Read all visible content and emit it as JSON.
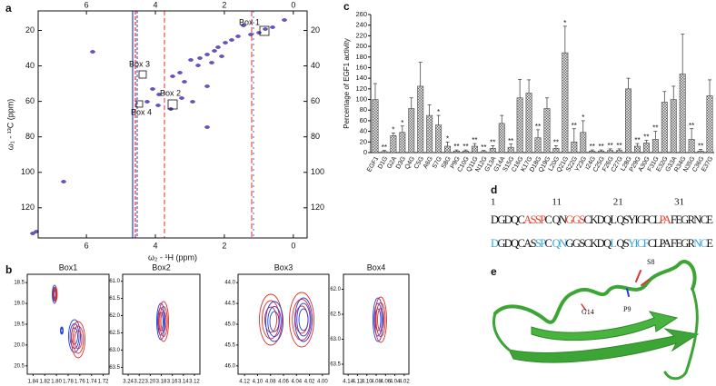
{
  "panel_labels": [
    "a",
    "b",
    "c",
    "d",
    "e"
  ],
  "chart_data": [
    {
      "type": "spectrum",
      "xlabel": "ω₂ - ¹H (ppm)",
      "ylabel": "ω₁ - ¹³C (ppm)",
      "xlim": [
        7.4,
        -0.4
      ],
      "xticks": [
        6,
        4,
        2,
        0
      ],
      "ylim": [
        9,
        137
      ],
      "yticks": [
        20,
        40,
        60,
        80,
        100,
        120
      ],
      "boxes": [
        "Box 1",
        "Box 2",
        "Box 3",
        "Box 4"
      ]
    },
    {
      "type": "contour",
      "title": "Box1",
      "xlim": [
        1.85,
        1.71
      ],
      "xticks": [
        1.84,
        1.82,
        {
          "value": 1.8,
          "label": "1.80"
        },
        1.78,
        1.76,
        1.74,
        1.72
      ],
      "ylim": [
        18.3,
        20.7
      ],
      "yticks": [
        18.5,
        {
          "value": 19,
          "label": "19.0"
        },
        19.5,
        {
          "value": 20,
          "label": "20.0"
        },
        20.5
      ]
    },
    {
      "type": "contour",
      "title": "Box2",
      "xlim": [
        3.25,
        3.11
      ],
      "xticks": [
        3.24,
        3.22,
        {
          "value": 3.2,
          "label": "3.20"
        },
        3.18,
        3.16,
        3.14,
        3.12
      ],
      "ylim": [
        60.8,
        63.7
      ],
      "yticks": [
        {
          "value": 61,
          "label": "61.0"
        },
        61.5,
        {
          "value": 62,
          "label": "62.0"
        },
        62.5,
        {
          "value": 63,
          "label": "63.0"
        },
        63.5
      ]
    },
    {
      "type": "contour",
      "title": "Box3",
      "xlim": [
        4.13,
        3.99
      ],
      "xticks": [
        4.12,
        {
          "value": 4.1,
          "label": "4.10"
        },
        4.08,
        4.06,
        4.04,
        4.02,
        {
          "value": 4,
          "label": "4.00"
        }
      ],
      "ylim": [
        43.8,
        46.2
      ],
      "yticks": [
        {
          "value": 44,
          "label": "44.0"
        },
        44.5,
        {
          "value": 45,
          "label": "45.0"
        },
        45.5,
        {
          "value": 46,
          "label": "46.0"
        }
      ]
    },
    {
      "type": "contour",
      "title": "Box4",
      "xlim": [
        4.15,
        4.01
      ],
      "xticks": [
        4.14,
        4.12,
        {
          "value": 4.1,
          "label": "4.10"
        },
        4.08,
        4.06,
        4.04,
        4.02
      ],
      "ylim": [
        61.7,
        63.7
      ],
      "yticks": [
        {
          "value": 62,
          "label": "62.0"
        },
        62.5,
        {
          "value": 63,
          "label": "63.0"
        },
        63.5
      ]
    },
    {
      "type": "bar",
      "ylabel": "Percentage of EGF1 activity",
      "color": "#c4c4c4",
      "categories": [
        "EGF1",
        "D1G",
        "G2A",
        "D3G",
        "Q4G",
        "C5G",
        "A6G",
        "S7G",
        "S8G",
        "P9G",
        "C10G",
        "Q11G",
        "N12G",
        "G13A",
        "G14A",
        "S15G",
        "C16G",
        "K17G",
        "D18G",
        "Q19G",
        "L20G",
        "Q21G",
        "S22G",
        "Y23G",
        "I24G",
        "C25G",
        "F26G",
        "C27G",
        "L28G",
        "P29G",
        "A30G",
        "F31G",
        "E32G",
        "G33A",
        "R34G",
        "N35G",
        "C36G",
        "E37G"
      ],
      "values": [
        100,
        2,
        32,
        38,
        83,
        125,
        70,
        52,
        12,
        3,
        3,
        12,
        2,
        8,
        55,
        10,
        103,
        112,
        28,
        83,
        8,
        188,
        20,
        38,
        3,
        3,
        4,
        4,
        120,
        12,
        18,
        25,
        95,
        100,
        148,
        25,
        3,
        107
      ],
      "errors": [
        30,
        2,
        5,
        12,
        20,
        45,
        20,
        18,
        8,
        2,
        2,
        5,
        2,
        5,
        15,
        6,
        35,
        25,
        15,
        20,
        5,
        50,
        25,
        22,
        2,
        2,
        3,
        3,
        20,
        5,
        5,
        15,
        20,
        25,
        75,
        20,
        3,
        30
      ],
      "significance": [
        null,
        "**",
        "*",
        "*",
        null,
        null,
        null,
        "*",
        "*",
        "**",
        "**",
        "**",
        "**",
        "**",
        null,
        "**",
        null,
        null,
        "**",
        null,
        "**",
        "*",
        "**",
        "*",
        "**",
        "**",
        "**",
        "**",
        null,
        "**",
        "**",
        "**",
        null,
        null,
        null,
        "**",
        "**",
        null
      ],
      "ylim": [
        0,
        260
      ],
      "yticks": [
        0,
        20,
        40,
        60,
        80,
        100,
        120,
        140,
        160,
        180,
        200,
        220,
        240,
        260
      ]
    }
  ],
  "sequence": {
    "numbers": [
      "1",
      "11",
      "21",
      "31"
    ],
    "rows": [
      [
        {
          "text": "DGDQC",
          "color": "#111111"
        },
        {
          "text": "ASSP",
          "color": "#e8412f"
        },
        {
          "text": "C QN",
          "color": "#111111"
        },
        {
          "text": "GGS",
          "color": "#e8412f"
        },
        {
          "text": "CKDQL QSYICFCL",
          "color": "#111111"
        },
        {
          "text": "PA",
          "color": "#e8412f"
        },
        {
          "text": " FEGRNCE",
          "color": "#111111"
        }
      ],
      [
        {
          "text": "D",
          "color": "#3aa5d8"
        },
        {
          "text": "GDQCAS",
          "color": "#111111"
        },
        {
          "text": "SP",
          "color": "#3aa5d8"
        },
        {
          "text": "C ",
          "color": "#111111"
        },
        {
          "text": "QN",
          "color": "#3aa5d8"
        },
        {
          "text": "GGSCKDQ",
          "color": "#111111"
        },
        {
          "text": "L",
          "color": "#3aa5d8"
        },
        {
          "text": " QS",
          "color": "#111111"
        },
        {
          "text": "YICF",
          "color": "#3aa5d8"
        },
        {
          "text": "CLPA FEGR",
          "color": "#111111"
        },
        {
          "text": "NC",
          "color": "#3aa5d8"
        },
        {
          "text": "E",
          "color": "#111111"
        }
      ]
    ]
  },
  "structure": {
    "labels": [
      "S8",
      "P9",
      "G14"
    ]
  }
}
